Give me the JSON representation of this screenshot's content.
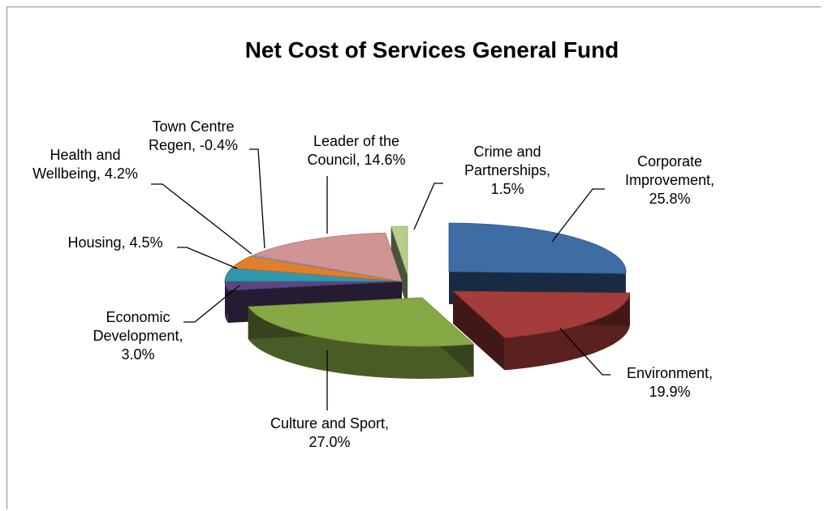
{
  "chart_data": {
    "type": "pie",
    "title": "Net Cost of  Services General Fund",
    "slices": [
      {
        "name": "Corporate Improvement",
        "value": 25.8,
        "label_lines": [
          "Corporate",
          "Improvement,",
          "25.8%"
        ],
        "color": "#3E6CA5"
      },
      {
        "name": "Environment",
        "value": 19.9,
        "label_lines": [
          "Environment,",
          "19.9%"
        ],
        "color": "#A33C3A"
      },
      {
        "name": "Culture and Sport",
        "value": 27.0,
        "label_lines": [
          "Culture and Sport,",
          "27.0%"
        ],
        "color": "#86A845"
      },
      {
        "name": "Economic Development",
        "value": 3.0,
        "label_lines": [
          "Economic",
          "Development,",
          "3.0%"
        ],
        "color": "#5C4680"
      },
      {
        "name": "Housing",
        "value": 4.5,
        "label_lines": [
          "Housing, 4.5%"
        ],
        "color": "#2F97AE"
      },
      {
        "name": "Health and Wellbeing",
        "value": 4.2,
        "label_lines": [
          "Health and",
          "Wellbeing,  4.2%"
        ],
        "color": "#E17F2A"
      },
      {
        "name": "Town Centre Regen",
        "value": -0.4,
        "label_lines": [
          "Town Centre",
          "Regen, -0.4%"
        ],
        "color": "#8DA2C9"
      },
      {
        "name": "Leader of the Council",
        "value": 14.6,
        "label_lines": [
          "Leader of the",
          "Council, 14.6%"
        ],
        "color": "#D09492"
      },
      {
        "name": "Crime and Partnerships",
        "value": 1.5,
        "label_lines": [
          "Crime and",
          "Partnerships,",
          "1.5%"
        ],
        "color": "#B7CF8E"
      }
    ]
  }
}
